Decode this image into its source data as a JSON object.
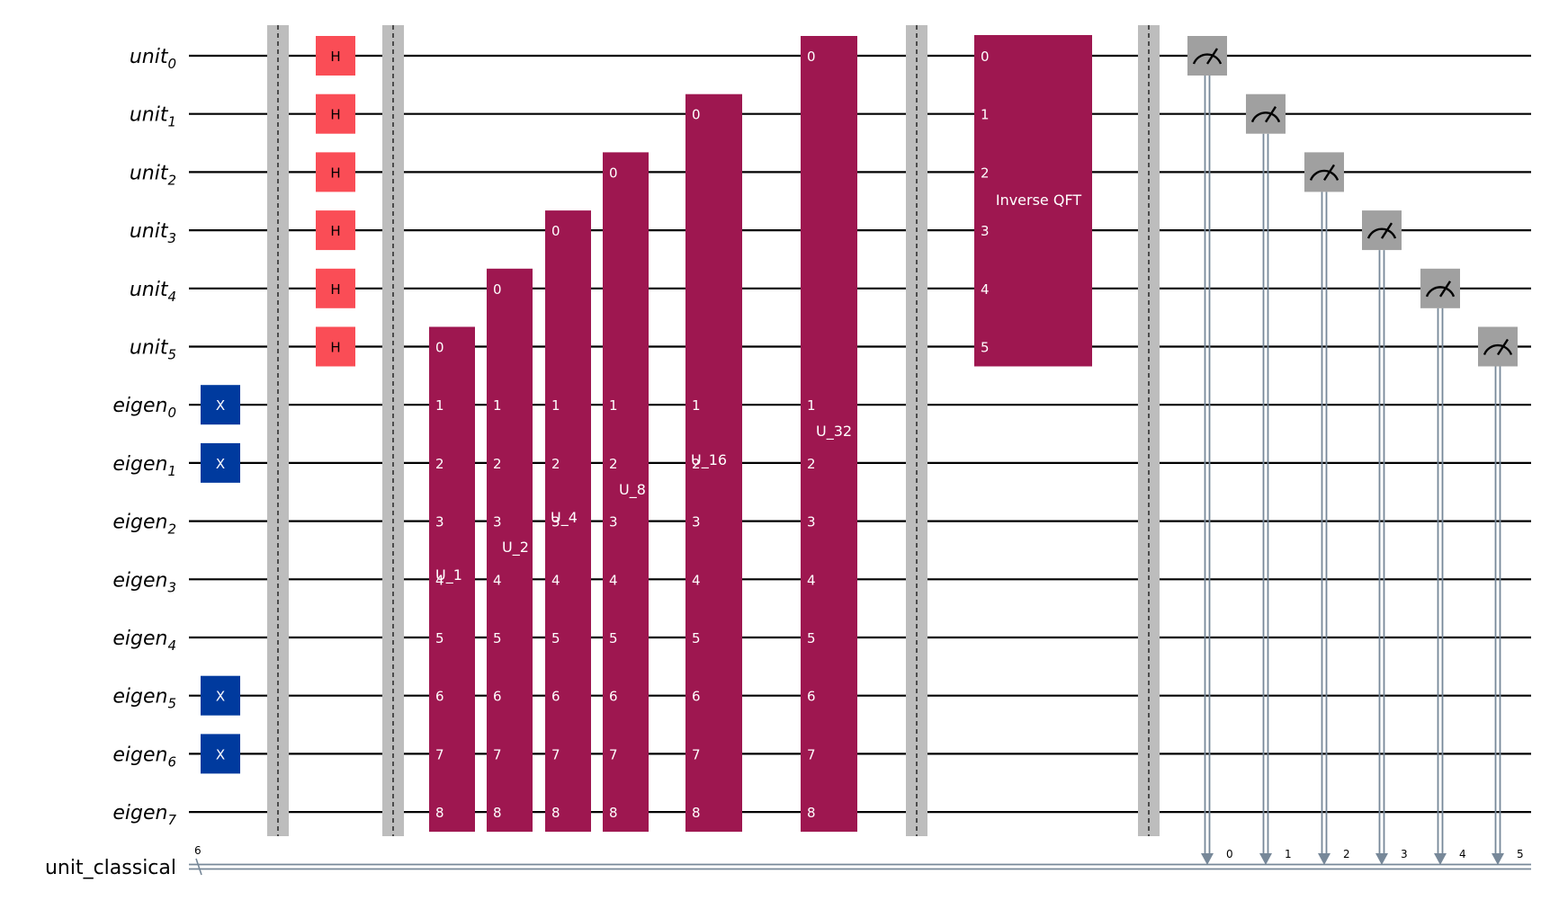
{
  "qubits": [
    {
      "name": "unit",
      "index": "0"
    },
    {
      "name": "unit",
      "index": "1"
    },
    {
      "name": "unit",
      "index": "2"
    },
    {
      "name": "unit",
      "index": "3"
    },
    {
      "name": "unit",
      "index": "4"
    },
    {
      "name": "unit",
      "index": "5"
    },
    {
      "name": "eigen",
      "index": "0"
    },
    {
      "name": "eigen",
      "index": "1"
    },
    {
      "name": "eigen",
      "index": "2"
    },
    {
      "name": "eigen",
      "index": "3"
    },
    {
      "name": "eigen",
      "index": "4"
    },
    {
      "name": "eigen",
      "index": "5"
    },
    {
      "name": "eigen",
      "index": "6"
    },
    {
      "name": "eigen",
      "index": "7"
    }
  ],
  "classical": {
    "name": "unit_classical",
    "width": "6"
  },
  "x_gates": {
    "label": "X",
    "color": "#003a9e",
    "qubits": [
      6,
      7,
      11,
      12
    ]
  },
  "h_gates": {
    "label": "H",
    "color": "#fa4d56",
    "qubits": [
      0,
      1,
      2,
      3,
      4,
      5
    ]
  },
  "controlled_u": {
    "color": "#9e1750",
    "gates": [
      {
        "label": "U_1",
        "control": 5
      },
      {
        "label": "U_2",
        "control": 4
      },
      {
        "label": "U_4",
        "control": 3
      },
      {
        "label": "U_8",
        "control": 2
      },
      {
        "label": "U_16",
        "control": 1
      },
      {
        "label": "U_32",
        "control": 0
      }
    ],
    "pins": [
      "0",
      "1",
      "2",
      "3",
      "4",
      "5",
      "6",
      "7",
      "8"
    ]
  },
  "inverse_qft": {
    "label": "Inverse QFT",
    "pins": [
      "0",
      "1",
      "2",
      "3",
      "4",
      "5"
    ]
  },
  "measurements": {
    "color": "#a0a0a0",
    "qubits": [
      0,
      1,
      2,
      3,
      4,
      5
    ],
    "bits": [
      "0",
      "1",
      "2",
      "3",
      "4",
      "5"
    ]
  },
  "barrier_color": "#bdbdbd"
}
